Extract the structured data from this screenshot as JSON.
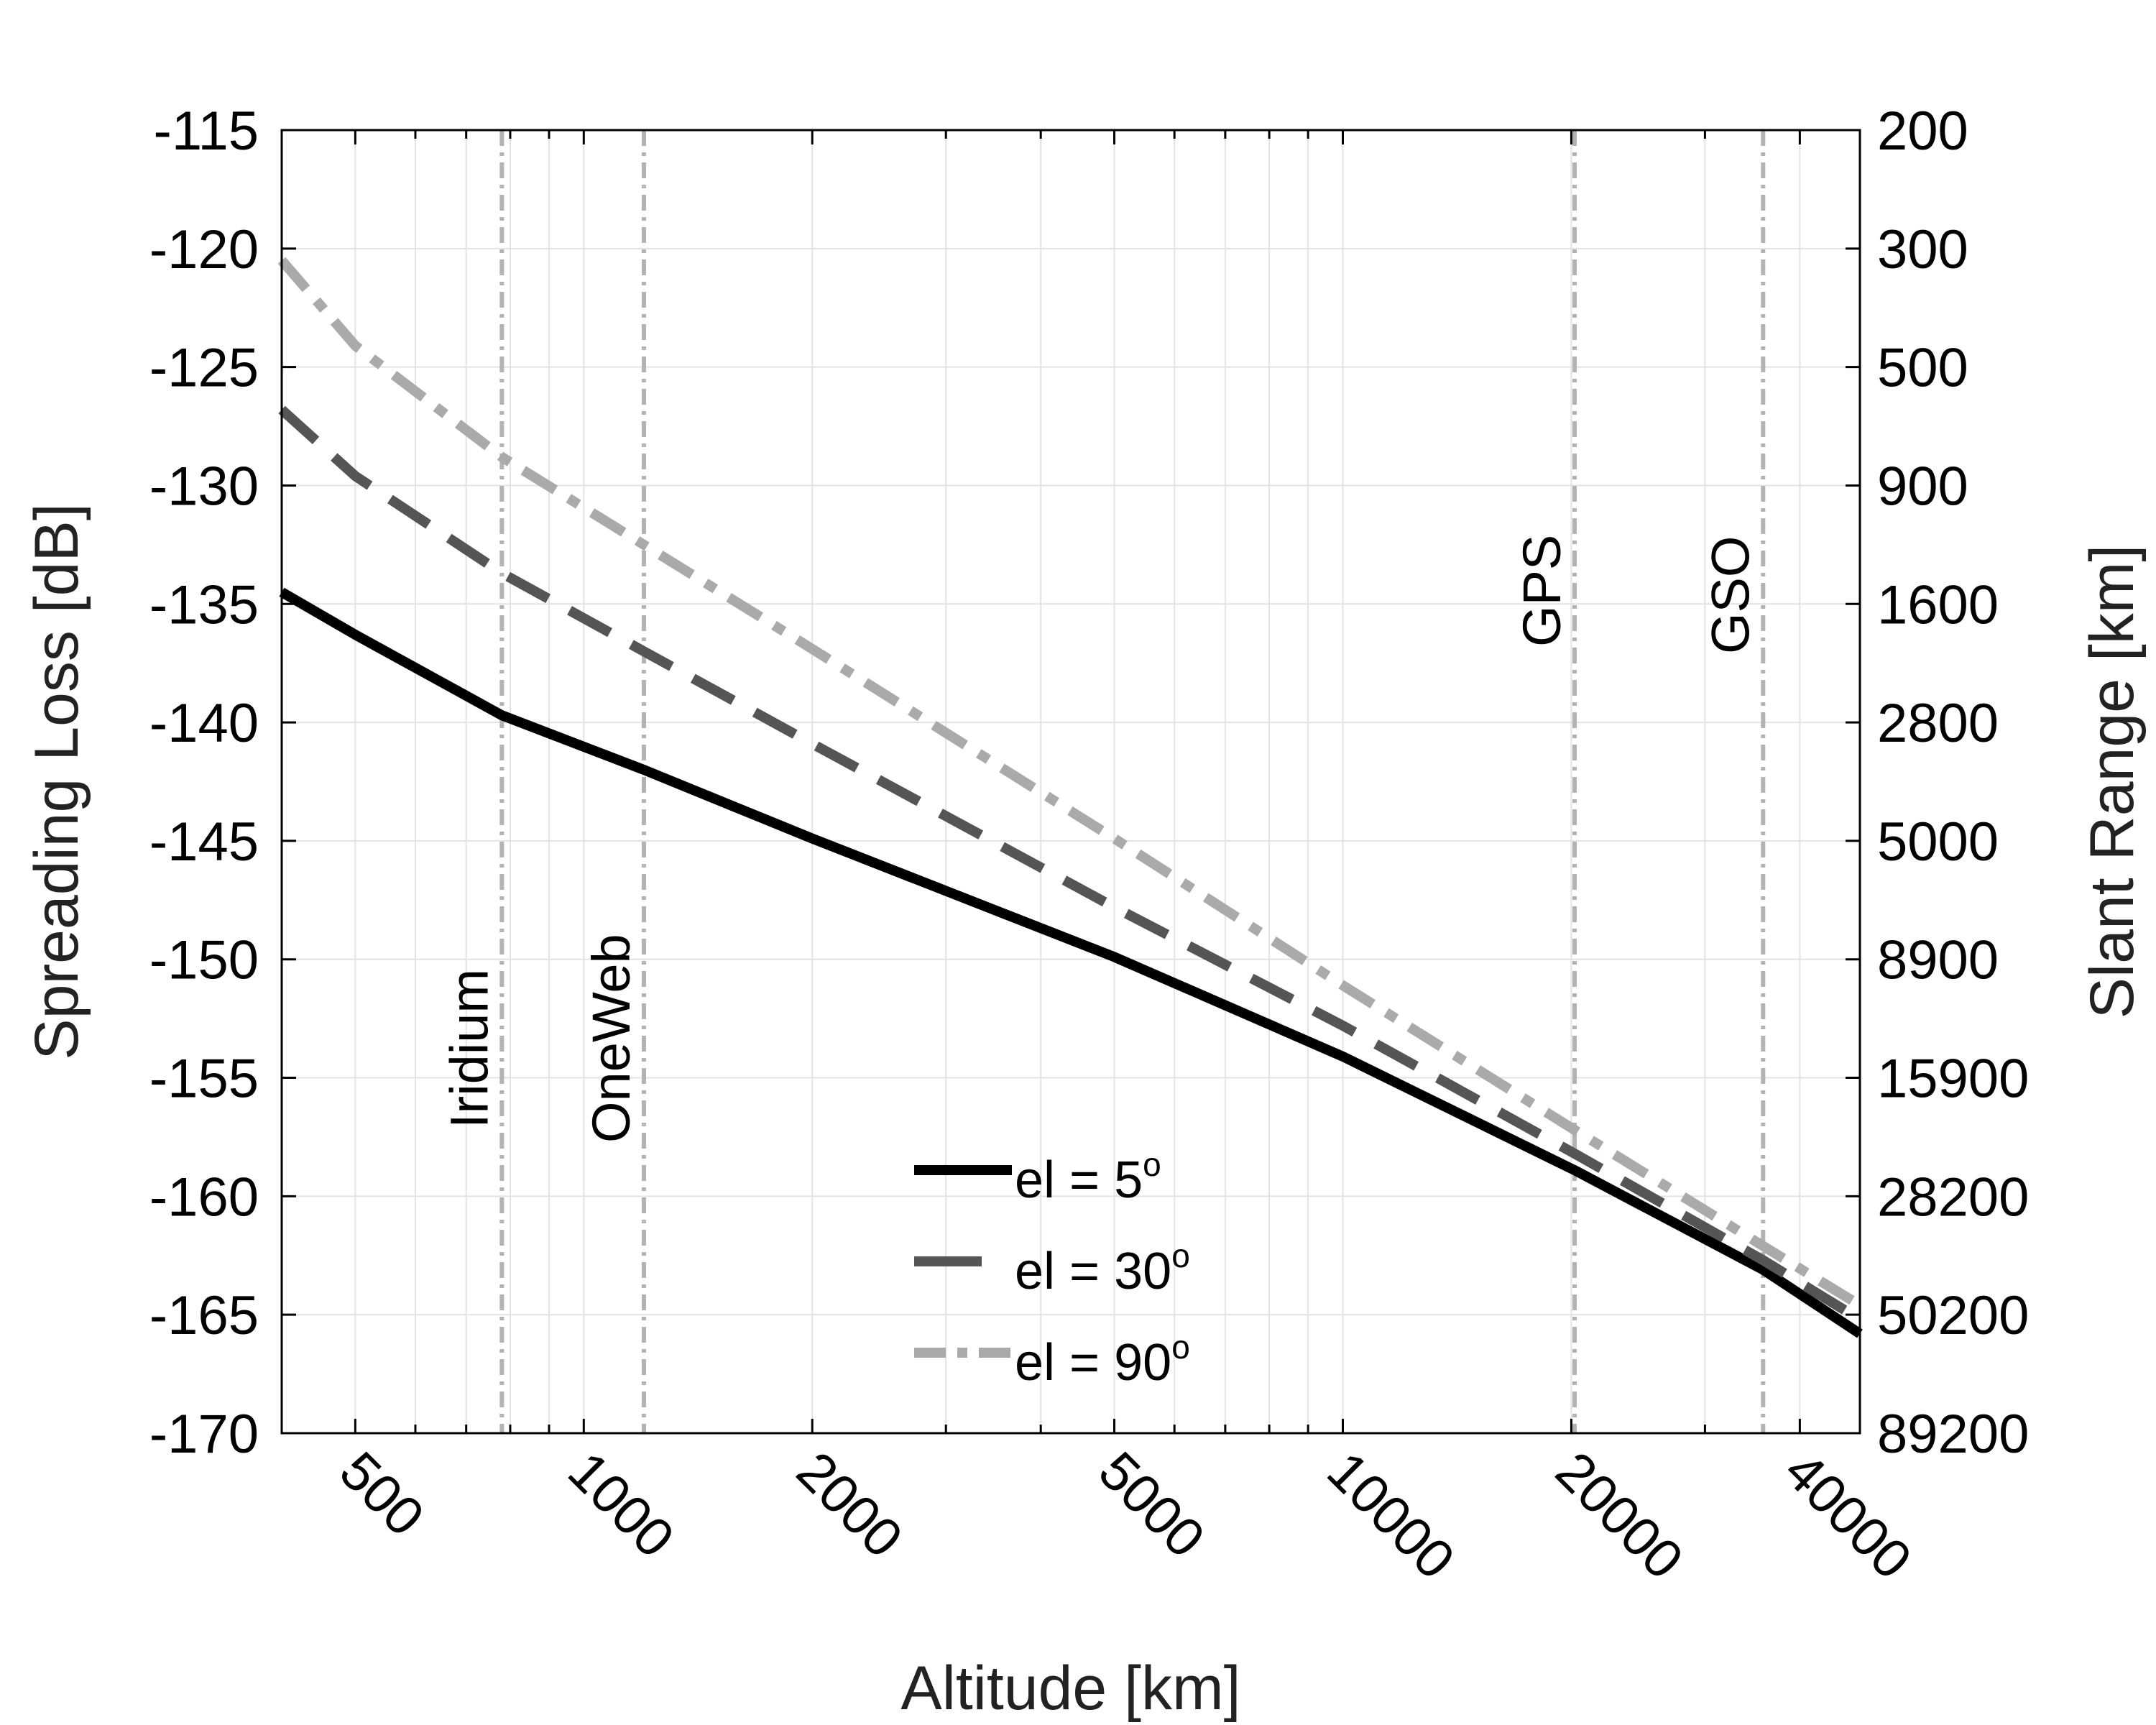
{
  "chart_data": {
    "type": "line",
    "title": "",
    "xlabel": "Altitude [km]",
    "ylabel": "Spreading Loss [dB]",
    "y2label": "Slant Range [km]",
    "xscale": "log",
    "xlim": [
      400,
      48000
    ],
    "ylim": [
      -170,
      -115
    ],
    "grid": true,
    "legend_position": "bottom-center",
    "x_ticks": [
      500,
      1000,
      2000,
      5000,
      10000,
      20000,
      40000
    ],
    "x_tick_labels": [
      "500",
      "1000",
      "2000",
      "5000",
      "10000",
      "20000",
      "40000"
    ],
    "y_ticks": [
      -115,
      -120,
      -125,
      -130,
      -135,
      -140,
      -145,
      -150,
      -155,
      -160,
      -165,
      -170
    ],
    "y_tick_labels": [
      "-115",
      "-120",
      "-125",
      "-130",
      "-135",
      "-140",
      "-145",
      "-150",
      "-155",
      "-160",
      "-165",
      "-170"
    ],
    "y2_tick_labels": [
      "200",
      "300",
      "500",
      "900",
      "1600",
      "2800",
      "5000",
      "8900",
      "15900",
      "28200",
      "50200",
      "89200"
    ],
    "series": [
      {
        "name": "el = 5",
        "name_superscript": "o",
        "color": "#000000",
        "style": "solid",
        "x": [
          400,
          500,
          780,
          1200,
          2000,
          5000,
          10000,
          20200,
          35786,
          48000
        ],
        "y": [
          -134.5,
          -136.3,
          -139.7,
          -142.0,
          -144.9,
          -149.9,
          -154.1,
          -158.9,
          -163.1,
          -165.8
        ]
      },
      {
        "name": "el = 30",
        "name_superscript": "o",
        "color": "#555555",
        "style": "dashed",
        "x": [
          400,
          500,
          780,
          1200,
          2000,
          5000,
          10000,
          20200,
          35786,
          48000
        ],
        "y": [
          -126.8,
          -129.6,
          -133.7,
          -137.0,
          -140.9,
          -147.8,
          -152.8,
          -158.2,
          -162.7,
          -165.2
        ]
      },
      {
        "name": "el = 90",
        "name_superscript": "o",
        "color": "#aaaaaa",
        "style": "dashdot",
        "x": [
          400,
          500,
          780,
          1200,
          2000,
          5000,
          10000,
          20200,
          35786,
          48000
        ],
        "y": [
          -120.5,
          -124.1,
          -128.8,
          -132.5,
          -136.9,
          -144.9,
          -151.1,
          -157.2,
          -162.1,
          -164.6
        ]
      }
    ],
    "reference_lines": [
      {
        "label": "Iridium",
        "x": 780
      },
      {
        "label": "OneWeb",
        "x": 1200
      },
      {
        "label": "GPS",
        "x": 20200
      },
      {
        "label": "GSO",
        "x": 35786
      }
    ]
  }
}
